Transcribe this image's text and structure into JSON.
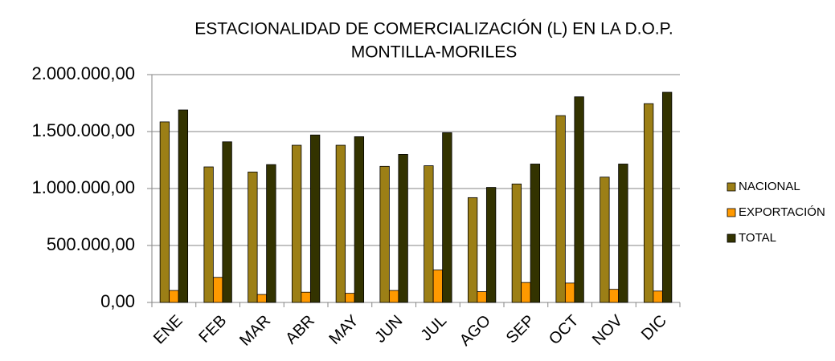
{
  "chart_data": {
    "type": "bar",
    "title": [
      "ESTACIONALIDAD DE COMERCIALIZACIÓN (L) EN LA D.O.P.",
      "MONTILLA-MORILES"
    ],
    "categories": [
      "ENE",
      "FEB",
      "MAR",
      "ABR",
      "MAY",
      "JUN",
      "JUL",
      "AGO",
      "SEP",
      "OCT",
      "NOV",
      "DIC"
    ],
    "series": [
      {
        "name": "NACIONAL",
        "color": "#9c7f16",
        "values": [
          1585000,
          1190000,
          1145000,
          1380000,
          1380000,
          1195000,
          1200000,
          920000,
          1040000,
          1640000,
          1100000,
          1745000
        ]
      },
      {
        "name": "EXPORTACIÓN",
        "color": "#ff9900",
        "values": [
          105000,
          220000,
          70000,
          90000,
          80000,
          105000,
          285000,
          95000,
          175000,
          170000,
          115000,
          100000
        ]
      },
      {
        "name": "TOTAL",
        "color": "#333300",
        "values": [
          1690000,
          1410000,
          1210000,
          1470000,
          1455000,
          1300000,
          1490000,
          1010000,
          1215000,
          1805000,
          1215000,
          1845000
        ]
      }
    ],
    "ylim": [
      0,
      2000000
    ],
    "yticks": [
      {
        "value": 0,
        "label": "0,00"
      },
      {
        "value": 500000,
        "label": "500.000,00"
      },
      {
        "value": 1000000,
        "label": "1.000.000,00"
      },
      {
        "value": 1500000,
        "label": "1.500.000,00"
      },
      {
        "value": 2000000,
        "label": "2.000.000,00"
      }
    ],
    "grid": true,
    "legend": "right"
  }
}
